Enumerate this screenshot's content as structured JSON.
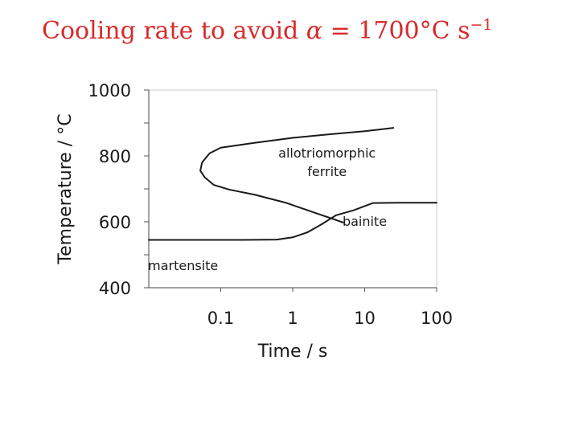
{
  "slide": {
    "title_text": "Cooling rate to avoid",
    "title_symbol": "α",
    "title_equals": "= 1700°C s",
    "title_exponent": "−1"
  },
  "chart_data": {
    "type": "line",
    "title": "Cooling rate to avoid α = 1700°C s−1",
    "xlabel": "Time / s",
    "ylabel": "Temperature / °C",
    "xscale": "log",
    "xlim": [
      0.01,
      100
    ],
    "ylim": [
      400,
      1000
    ],
    "xticks": [
      0.1,
      1,
      10,
      100
    ],
    "xtick_labels": [
      "0.1",
      "1",
      "10",
      "100"
    ],
    "yticks": [
      400,
      600,
      800,
      1000
    ],
    "ytick_labels": [
      "400",
      "600",
      "800",
      "1000"
    ],
    "grid": false,
    "legend": "none",
    "line_color": "#1a1a1a",
    "curves": [
      {
        "label": "allotriomorphic ferrite",
        "points": [
          [
            25.0,
            885
          ],
          [
            10.0,
            875
          ],
          [
            3.0,
            865
          ],
          [
            1.0,
            855
          ],
          [
            0.3,
            840
          ],
          [
            0.1,
            825
          ],
          [
            0.07,
            808
          ],
          [
            0.055,
            780
          ],
          [
            0.052,
            755
          ],
          [
            0.06,
            735
          ],
          [
            0.08,
            712
          ],
          [
            0.13,
            698
          ],
          [
            0.3,
            682
          ],
          [
            0.8,
            658
          ],
          [
            2.0,
            628
          ],
          [
            3.5,
            610
          ],
          [
            5.0,
            598
          ]
        ]
      },
      {
        "label": "bainite",
        "points": [
          [
            0.01,
            545
          ],
          [
            0.06,
            545
          ],
          [
            0.2,
            545
          ],
          [
            0.6,
            546
          ],
          [
            1.0,
            553
          ],
          [
            1.6,
            568
          ],
          [
            2.5,
            592
          ],
          [
            4.0,
            620
          ],
          [
            7.0,
            635
          ],
          [
            13.0,
            657
          ],
          [
            30.0,
            658
          ],
          [
            100.0,
            658
          ]
        ]
      }
    ],
    "annotations": [
      {
        "line1": "allotriomorphic",
        "line2": "ferrite",
        "x": 3.0,
        "y": 785
      },
      {
        "line1": "bainite",
        "line2": "",
        "x": 10.0,
        "y": 603
      },
      {
        "line1": "martensite",
        "line2": "",
        "x": 0.03,
        "y": 468
      }
    ]
  }
}
